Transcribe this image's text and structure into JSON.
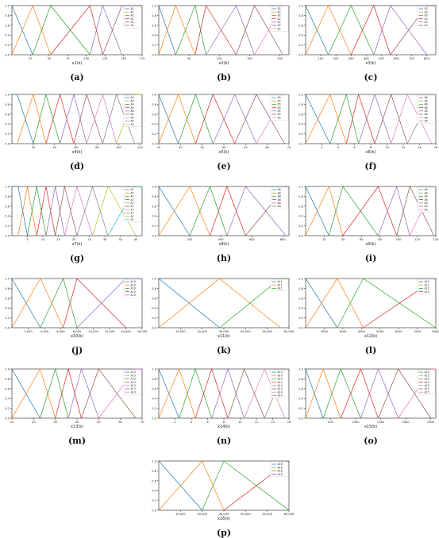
{
  "figure": {
    "panels": [
      {
        "caption": "(a)",
        "chart_data": {
          "type": "line",
          "xlabel": "x1(k)",
          "xlim": [
            0,
            175
          ],
          "ylim": [
            0,
            1.0
          ],
          "xticks": [
            "25",
            "50",
            "75",
            "100",
            "125",
            "150",
            "175"
          ],
          "yticks": [
            "0.0",
            "0.2",
            "0.4",
            "0.6",
            "0.8",
            "1.0"
          ],
          "peaks": [
            0,
            28,
            52,
            105,
            122,
            148
          ],
          "legend": [
            "A1",
            "A1",
            "A1",
            "A1",
            "A1",
            "A1"
          ]
        }
      },
      {
        "caption": "(b)",
        "chart_data": {
          "type": "line",
          "xlabel": "x2(k)",
          "xlim": [
            0,
            215
          ],
          "ylim": [
            0,
            1.0
          ],
          "xticks": [
            "50",
            "100",
            "150",
            "200"
          ],
          "yticks": [
            "0.0",
            "0.2",
            "0.4",
            "0.6",
            "0.8",
            "1.0"
          ],
          "peaks": [
            0,
            28,
            60,
            78,
            128,
            158,
            205
          ],
          "legend": [
            "A2",
            "A2",
            "A2",
            "A2",
            "A2",
            "A2",
            "A2"
          ]
        }
      },
      {
        "caption": "(c)",
        "chart_data": {
          "type": "line",
          "xlabel": "x3(k)",
          "xlim": [
            0,
            860
          ],
          "ylim": [
            0,
            1.0
          ],
          "xticks": [
            "100",
            "200",
            "300",
            "400",
            "500",
            "600",
            "700",
            "800"
          ],
          "yticks": [
            "0.0",
            "0.2",
            "0.4",
            "0.6",
            "0.8",
            "1.0"
          ],
          "peaks": [
            0,
            150,
            300,
            450,
            560,
            800
          ],
          "legend": [
            "A3",
            "A3",
            "A3",
            "A3",
            "A3",
            "A3"
          ]
        }
      },
      {
        "caption": "(d)",
        "chart_data": {
          "type": "line",
          "xlabel": "x4(k)",
          "xlim": [
            0,
            122
          ],
          "ylim": [
            0,
            1.0
          ],
          "xticks": [
            "20",
            "40",
            "60",
            "80",
            "100",
            "120"
          ],
          "yticks": [
            "0.0",
            "0.2",
            "0.4",
            "0.6",
            "0.8",
            "1.0"
          ],
          "peaks": [
            5,
            20,
            32,
            45,
            58,
            70,
            85,
            98,
            115
          ],
          "legend": [
            "A4",
            "A4",
            "A4",
            "A4",
            "A4",
            "A4",
            "A4",
            "A4",
            "A4"
          ]
        }
      },
      {
        "caption": "(e)",
        "chart_data": {
          "type": "line",
          "xlabel": "x5(k)",
          "xlim": [
            10,
            70
          ],
          "ylim": [
            0,
            1.0
          ],
          "xticks": [
            "10",
            "20",
            "30",
            "40",
            "50",
            "60",
            "70"
          ],
          "yticks": [
            "0.0",
            "0.2",
            "0.4",
            "0.6",
            "0.8",
            "1.0"
          ],
          "peaks": [
            10,
            19,
            27,
            35,
            45,
            55,
            68
          ],
          "legend": [
            "A5",
            "A5",
            "A5",
            "A5",
            "A5",
            "A5",
            "A5"
          ]
        }
      },
      {
        "caption": "(f)",
        "chart_data": {
          "type": "line",
          "xlabel": "x6(k)",
          "xlim": [
            0,
            16
          ],
          "ylim": [
            0,
            1.0
          ],
          "xticks": [
            "2",
            "4",
            "6",
            "8",
            "10",
            "12",
            "14",
            "16"
          ],
          "yticks": [
            "0.0",
            "0.2",
            "0.4",
            "0.6",
            "0.8",
            "1.0"
          ],
          "peaks": [
            0,
            3,
            5,
            6.5,
            8.5,
            10.5,
            12.5,
            15.5
          ],
          "legend": [
            "A6",
            "A6",
            "A6",
            "A6",
            "A6",
            "A6",
            "A6",
            "A6"
          ]
        }
      },
      {
        "caption": "(g)",
        "chart_data": {
          "type": "line",
          "xlabel": "x7(k)",
          "xlim": [
            0,
            42
          ],
          "ylim": [
            0,
            1.0
          ],
          "xticks": [
            "5",
            "10",
            "15",
            "20",
            "25",
            "30",
            "35",
            "40"
          ],
          "yticks": [
            "0.0",
            "0.2",
            "0.4",
            "0.6",
            "0.8",
            "1.0"
          ],
          "peaks": [
            2,
            5,
            8,
            11,
            14,
            17,
            21,
            26,
            31,
            40
          ],
          "legend": [
            "A7",
            "A7",
            "A7",
            "A7",
            "A7",
            "A7",
            "A7",
            "A7",
            "A7",
            "A7"
          ]
        }
      },
      {
        "caption": "(h)",
        "chart_data": {
          "type": "line",
          "xlabel": "x8(k)",
          "xlim": [
            0,
            840
          ],
          "ylim": [
            0,
            1.0
          ],
          "xticks": [
            "200",
            "400",
            "600",
            "800"
          ],
          "yticks": [
            "0.0",
            "0.2",
            "0.4",
            "0.6",
            "0.8",
            "1.0"
          ],
          "peaks": [
            0,
            200,
            330,
            440,
            560,
            820
          ],
          "legend": [
            "A8",
            "A8",
            "A8",
            "A8",
            "A8",
            "A8"
          ]
        }
      },
      {
        "caption": "(i)",
        "chart_data": {
          "type": "line",
          "xlabel": "x9(k)",
          "xlim": [
            0,
            140
          ],
          "ylim": [
            0,
            1.0
          ],
          "xticks": [
            "20",
            "40",
            "60",
            "80",
            "100",
            "120",
            "140"
          ],
          "yticks": [
            "0.0",
            "0.2",
            "0.4",
            "0.6",
            "0.8",
            "1.0"
          ],
          "peaks": [
            0,
            25,
            40,
            78,
            98,
            112,
            138
          ],
          "legend": [
            "A9",
            "A9",
            "A9",
            "A9",
            "A9",
            "A9",
            "A9"
          ]
        }
      },
      {
        "caption": "(j)",
        "chart_data": {
          "type": "line",
          "xlabel": "x10(k)",
          "xlim": [
            0,
            16000
          ],
          "ylim": [
            0,
            1.0
          ],
          "xticks": [
            "2,000",
            "4,000",
            "6,000",
            "8,000",
            "10,000",
            "12,000",
            "14,000",
            "16,000"
          ],
          "yticks": [
            "0.0",
            "0.2",
            "0.4",
            "0.6",
            "0.8",
            "1.0"
          ],
          "peaks": [
            0,
            3500,
            6300,
            8000,
            14000
          ],
          "legend": [
            "A10",
            "A10",
            "A10",
            "A10",
            "A10"
          ]
        }
      },
      {
        "caption": "(k)",
        "chart_data": {
          "type": "line",
          "xlabel": "x11(k)",
          "xlim": [
            0,
            60000
          ],
          "ylim": [
            0,
            1.0
          ],
          "xticks": [
            "10,000",
            "20,000",
            "30,000",
            "40,000",
            "50,000",
            "60,000"
          ],
          "yticks": [
            "0.0",
            "0.2",
            "0.4",
            "0.6",
            "0.8",
            "1.0"
          ],
          "peaks": [
            0,
            28000,
            56000
          ],
          "legend": [
            "A11",
            "A11",
            "A11"
          ]
        }
      },
      {
        "caption": "(l)",
        "chart_data": {
          "type": "line",
          "xlabel": "x12(k)",
          "xlim": [
            1000,
            8000
          ],
          "ylim": [
            0,
            1.0
          ],
          "xticks": [
            "2000",
            "3000",
            "4000",
            "5000",
            "6000",
            "7000",
            "8000"
          ],
          "yticks": [
            "0.0",
            "0.2",
            "0.4",
            "0.6",
            "0.8",
            "1.0"
          ],
          "peaks": [
            1000,
            2700,
            4100,
            8000
          ],
          "legend": [
            "A12",
            "A12",
            "A12",
            "A12"
          ]
        }
      },
      {
        "caption": "(m)",
        "chart_data": {
          "type": "line",
          "xlabel": "x13(k)",
          "xlim": [
            10,
            70
          ],
          "ylim": [
            0,
            1.0
          ],
          "xticks": [
            "10",
            "20",
            "30",
            "40",
            "50",
            "60",
            "70"
          ],
          "yticks": [
            "0.0",
            "0.2",
            "0.4",
            "0.6",
            "0.8",
            "1.0"
          ],
          "peaks": [
            10,
            23,
            30,
            36,
            42,
            50,
            67
          ],
          "legend": [
            "A13",
            "A13",
            "A13",
            "A13",
            "A13",
            "A13",
            "A13"
          ]
        }
      },
      {
        "caption": "(n)",
        "chart_data": {
          "type": "line",
          "xlabel": "x14(k)",
          "xlim": [
            0,
            16
          ],
          "ylim": [
            0,
            1.0
          ],
          "xticks": [
            "2",
            "4",
            "6",
            "8",
            "10",
            "12",
            "14",
            "16"
          ],
          "yticks": [
            "0.0",
            "0.2",
            "0.4",
            "0.6",
            "0.8",
            "1.0"
          ],
          "peaks": [
            0,
            2.5,
            4.5,
            6.5,
            8.5,
            10.5,
            13,
            15.5
          ],
          "legend": [
            "A14",
            "A14",
            "A14",
            "A14",
            "A14",
            "A14",
            "A14",
            "A14"
          ]
        }
      },
      {
        "caption": "(o)",
        "chart_data": {
          "type": "line",
          "xlabel": "x15(k)",
          "xlim": [
            0,
            2600
          ],
          "ylim": [
            0,
            1.0
          ],
          "xticks": [
            "500",
            "1000",
            "1500",
            "2000",
            "2500"
          ],
          "yticks": [
            "0.0",
            "0.2",
            "0.4",
            "0.6",
            "0.8",
            "1.0"
          ],
          "peaks": [
            0,
            350,
            700,
            1100,
            1450,
            1850,
            2500
          ],
          "legend": [
            "A15",
            "A15",
            "A15",
            "A15",
            "A15",
            "A15",
            "A15"
          ]
        }
      },
      {
        "caption": "(p)",
        "chart_data": {
          "type": "line",
          "xlabel": "x16(k)",
          "xlim": [
            0,
            60000
          ],
          "ylim": [
            0,
            1.0
          ],
          "xticks": [
            "10,000",
            "20,000",
            "30,000",
            "40,000",
            "50,000",
            "60,000"
          ],
          "yticks": [
            "0.0",
            "0.2",
            "0.4",
            "0.6",
            "0.8",
            "1.0"
          ],
          "peaks": [
            0,
            20000,
            30000,
            60000
          ],
          "legend": [
            "A16",
            "A16",
            "A16",
            "A16"
          ]
        }
      }
    ],
    "series_colors": [
      "#1f77b4",
      "#ff7f0e",
      "#2ca02c",
      "#d62728",
      "#9467bd",
      "#8c564b",
      "#e377c2",
      "#7f7f7f",
      "#bcbd22",
      "#17becf"
    ]
  }
}
